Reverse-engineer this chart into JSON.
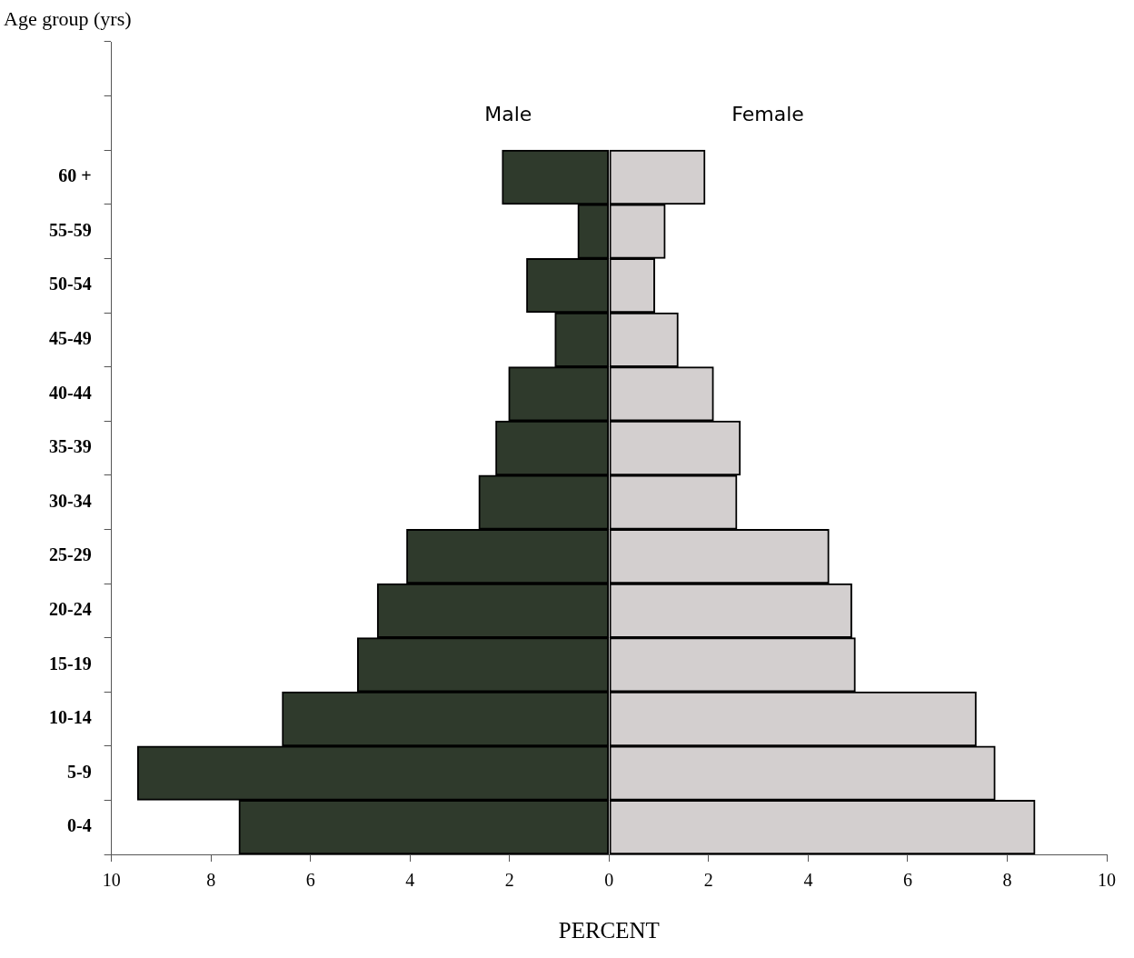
{
  "chart_data": {
    "type": "bar",
    "orientation": "horizontal",
    "stacked": true,
    "ylabel": "Age group (yrs)",
    "xlabel": "PERCENT",
    "categories": [
      null,
      null,
      "60 +",
      "55-59",
      "50-54",
      "45-49",
      "40-44",
      "35-39",
      "30-34",
      "25-29",
      "20-24",
      "15-19",
      "10-14",
      "5-9",
      "0-4"
    ],
    "series": [
      {
        "name": "Male",
        "color": "#2f3a2c",
        "values": [
          null,
          null,
          -2.15,
          -0.63,
          -1.66,
          -1.09,
          -2.02,
          -2.28,
          -2.62,
          -4.07,
          -4.66,
          -5.06,
          -6.57,
          -9.48,
          -7.44
        ]
      },
      {
        "name": "Female",
        "color": "#d3cfcf",
        "values": [
          null,
          null,
          1.93,
          1.13,
          0.92,
          1.39,
          2.1,
          2.64,
          2.57,
          4.42,
          4.88,
          4.95,
          7.38,
          7.76,
          8.56
        ]
      }
    ],
    "xlim": [
      -10,
      10
    ],
    "xticks": [
      {
        "value": -10,
        "label": "10"
      },
      {
        "value": -8,
        "label": "8"
      },
      {
        "value": -6,
        "label": "6"
      },
      {
        "value": -4,
        "label": "4"
      },
      {
        "value": -2,
        "label": "2"
      },
      0,
      2,
      4,
      6,
      8,
      10
    ],
    "grid": false,
    "legend": false
  }
}
